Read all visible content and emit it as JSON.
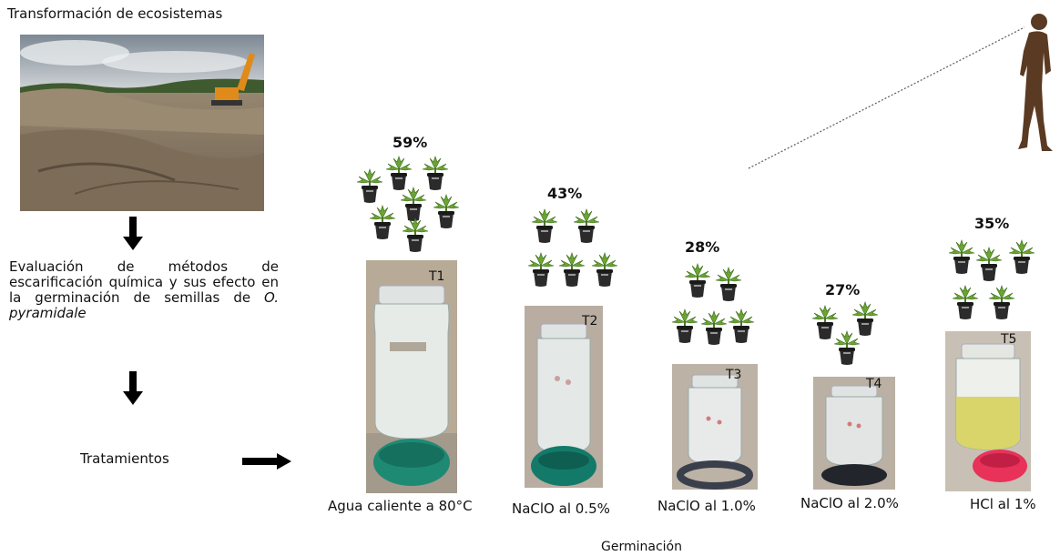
{
  "top_title": "Transformación de ecosistemas",
  "description": {
    "text": "Evaluación de métodos de escarificación química y sus efecto en la germinación de semillas de",
    "species": "O. pyramidale"
  },
  "tratamientos_label": "Tratamientos",
  "treatments": [
    {
      "id": "T1",
      "percent": "59%",
      "caption": "Agua caliente a 80°C",
      "germination": 59,
      "cap_color": "#1f8a74",
      "liquid_color": "#e7ebe8"
    },
    {
      "id": "T2",
      "percent": "43%",
      "caption": "NaClO al 0.5%",
      "germination": 43,
      "cap_color": "#137a6a",
      "liquid_color": "#e4e8e6"
    },
    {
      "id": "T3",
      "percent": "28%",
      "caption": "NaClO al 1.0%",
      "germination": 28,
      "cap_color": "#3a3f4c",
      "liquid_color": "#e8eaea"
    },
    {
      "id": "T4",
      "percent": "27%",
      "caption": "NaClO al 2.0%",
      "germination": 27,
      "cap_color": "#22252c",
      "liquid_color": "#e2e5e3"
    },
    {
      "id": "T5",
      "percent": "35%",
      "caption": "HCl al 1%",
      "germination": 35,
      "cap_color": "#e8325a",
      "liquid_color": "#d9d56a"
    }
  ],
  "bottom_caption": "Germinación",
  "colors": {
    "silhouette": "#5a3a22",
    "plant_leaf": "#6aa534",
    "pot": "#2b2b2b",
    "arrow": "#000000"
  }
}
